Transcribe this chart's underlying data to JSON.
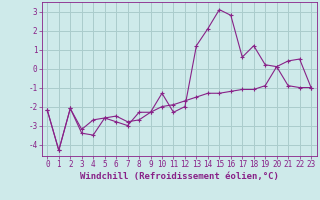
{
  "xlabel": "Windchill (Refroidissement éolien,°C)",
  "ylabel": "",
  "background_color": "#ceeaea",
  "grid_color": "#aacccc",
  "line_color": "#882288",
  "x_values": [
    0,
    1,
    2,
    3,
    4,
    5,
    6,
    7,
    8,
    9,
    10,
    11,
    12,
    13,
    14,
    15,
    16,
    17,
    18,
    19,
    20,
    21,
    22,
    23
  ],
  "series1": [
    -2.2,
    -4.3,
    -2.1,
    -3.2,
    -2.7,
    -2.6,
    -2.8,
    -3.0,
    -2.3,
    -2.3,
    -1.3,
    -2.3,
    -2.0,
    1.2,
    2.1,
    3.1,
    2.8,
    0.6,
    1.2,
    0.2,
    0.1,
    0.4,
    0.5,
    -1.0
  ],
  "series2": [
    -2.2,
    -4.3,
    -2.1,
    -3.4,
    -3.5,
    -2.6,
    -2.5,
    -2.8,
    -2.7,
    -2.3,
    -2.0,
    -1.9,
    -1.7,
    -1.5,
    -1.3,
    -1.3,
    -1.2,
    -1.1,
    -1.1,
    -0.9,
    0.1,
    -0.9,
    -1.0,
    -1.0
  ],
  "ylim": [
    -4.6,
    3.5
  ],
  "xlim": [
    -0.5,
    23.5
  ],
  "yticks": [
    -4,
    -3,
    -2,
    -1,
    0,
    1,
    2,
    3
  ],
  "xticks": [
    0,
    1,
    2,
    3,
    4,
    5,
    6,
    7,
    8,
    9,
    10,
    11,
    12,
    13,
    14,
    15,
    16,
    17,
    18,
    19,
    20,
    21,
    22,
    23
  ],
  "tick_fontsize": 5.5,
  "label_fontsize": 6.5
}
